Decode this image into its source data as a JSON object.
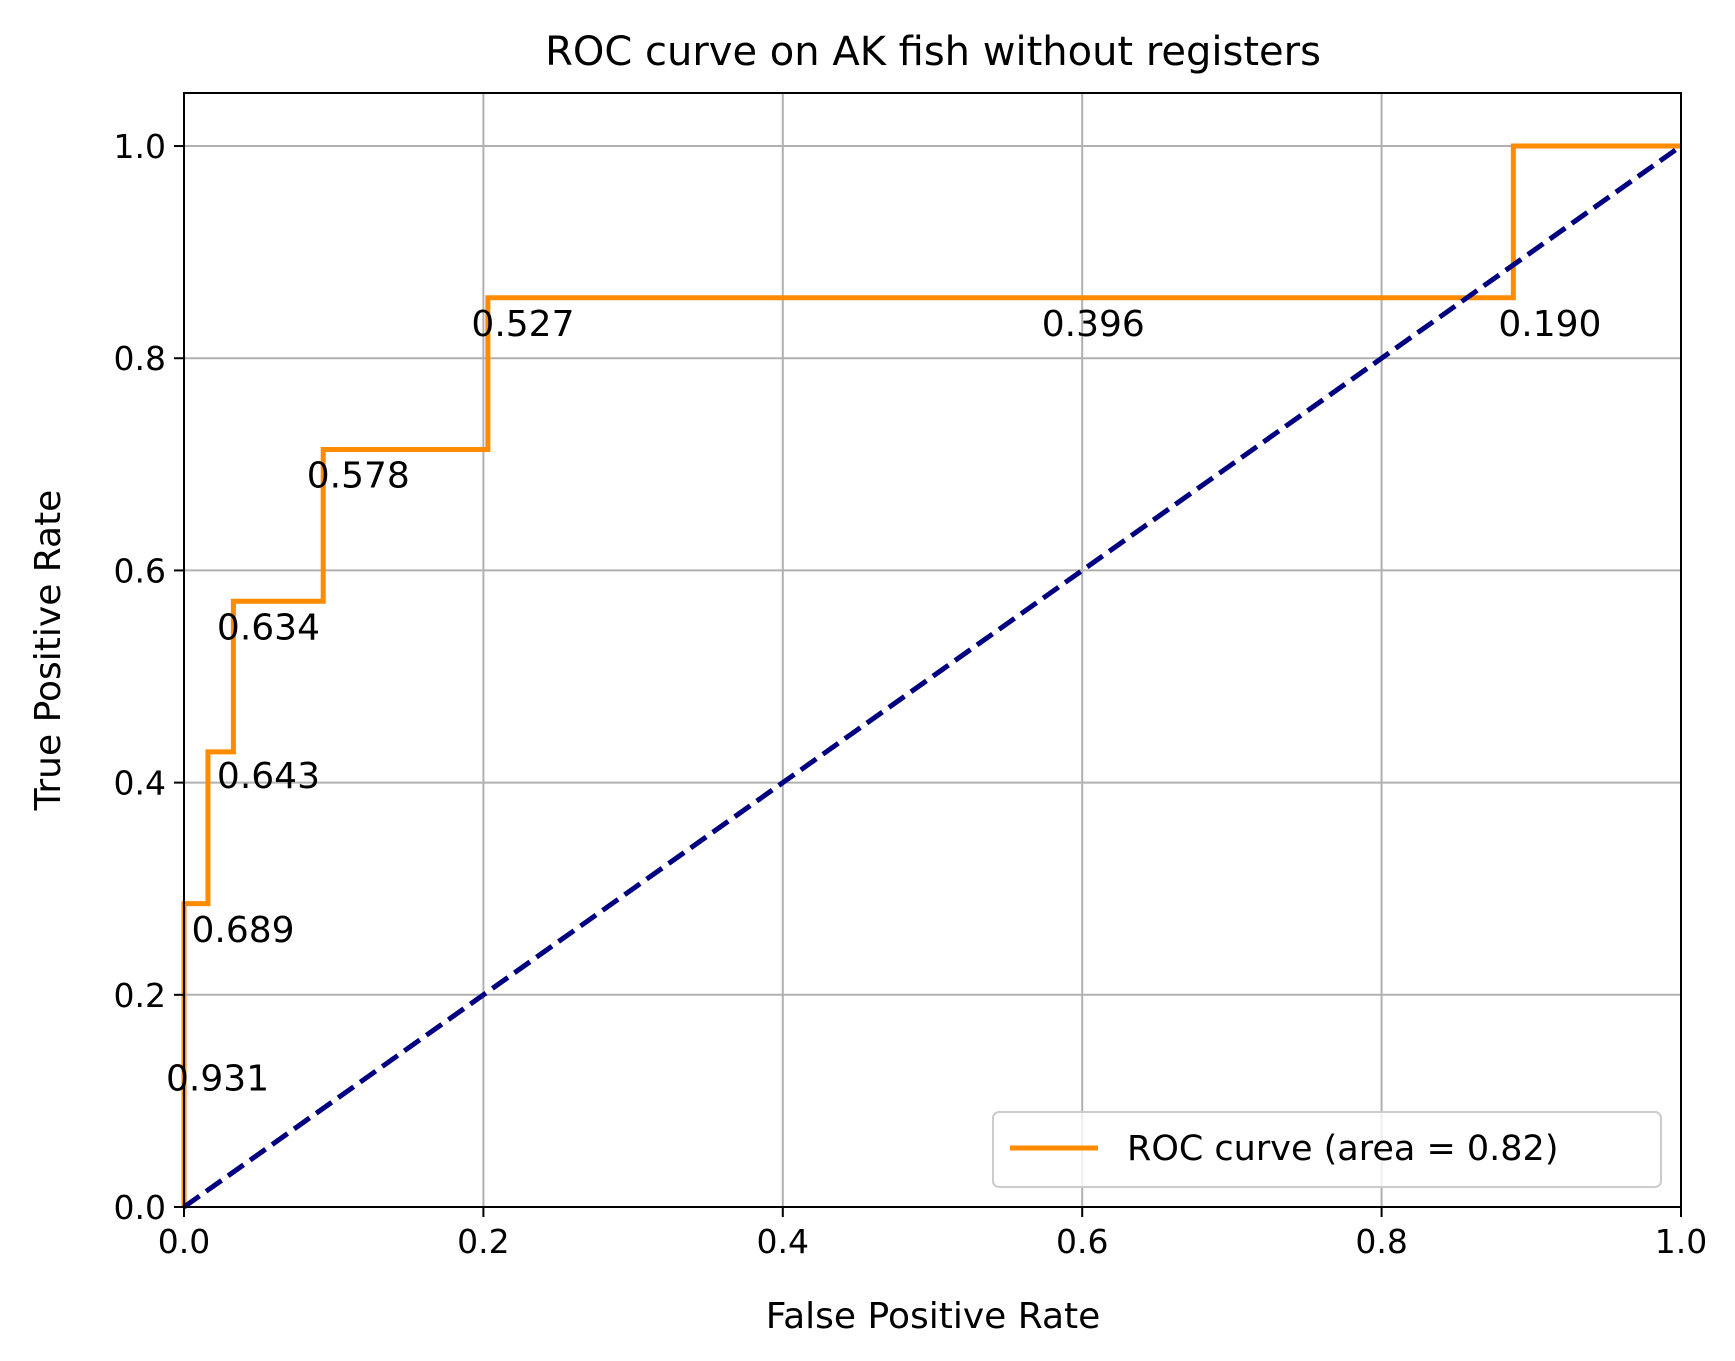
{
  "chart_data": {
    "type": "line",
    "title": "ROC curve on AK fish without registers",
    "xlabel": "False Positive Rate",
    "ylabel": "True Positive Rate",
    "xlim": [
      0.0,
      1.0
    ],
    "ylim": [
      0.0,
      1.05
    ],
    "xticks": [
      0.0,
      0.2,
      0.4,
      0.6,
      0.8,
      1.0
    ],
    "yticks": [
      0.0,
      0.2,
      0.4,
      0.6,
      0.8,
      1.0
    ],
    "xtick_labels": [
      "0.0",
      "0.2",
      "0.4",
      "0.6",
      "0.8",
      "1.0"
    ],
    "ytick_labels": [
      "0.0",
      "0.2",
      "0.4",
      "0.6",
      "0.8",
      "1.0"
    ],
    "grid": true,
    "legend_position": "lower-right",
    "series": [
      {
        "name": "ROC curve (area = 0.82)",
        "color": "#ff8c00",
        "style": "solid",
        "x": [
          0.0,
          0.0,
          0.0,
          0.016,
          0.016,
          0.033,
          0.033,
          0.093,
          0.093,
          0.203,
          0.203,
          0.888,
          0.888,
          1.0
        ],
        "y": [
          0.0,
          0.143,
          0.286,
          0.286,
          0.429,
          0.429,
          0.571,
          0.571,
          0.714,
          0.714,
          0.857,
          0.857,
          1.0,
          1.0
        ]
      },
      {
        "color": "#000080",
        "style": "dashed",
        "x": [
          0.0,
          1.0
        ],
        "y": [
          0.0,
          1.0
        ]
      }
    ],
    "annotations": [
      {
        "text": "0.931",
        "x": -0.012,
        "y": 0.11
      },
      {
        "text": "0.689",
        "x": 0.005,
        "y": 0.25
      },
      {
        "text": "0.643",
        "x": 0.022,
        "y": 0.395
      },
      {
        "text": "0.634",
        "x": 0.022,
        "y": 0.535
      },
      {
        "text": "0.578",
        "x": 0.082,
        "y": 0.678
      },
      {
        "text": "0.527",
        "x": 0.192,
        "y": 0.821
      },
      {
        "text": "0.396",
        "x": 0.573,
        "y": 0.821
      },
      {
        "text": "0.190",
        "x": 0.878,
        "y": 0.821
      }
    ]
  }
}
